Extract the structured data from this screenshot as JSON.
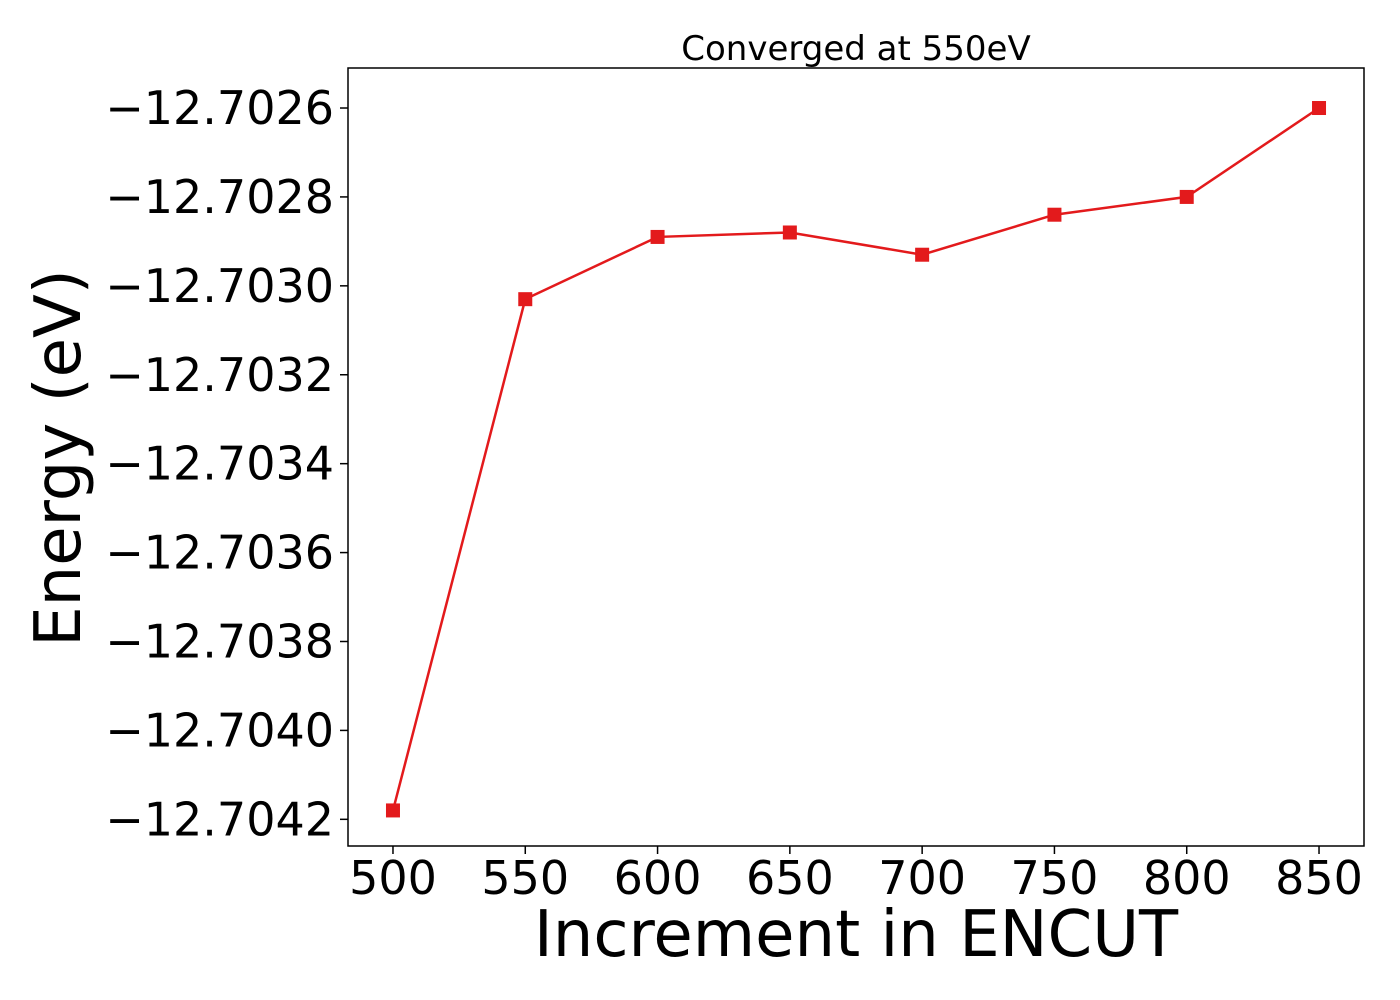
{
  "chart_data": {
    "type": "line",
    "title": "Converged at 550eV",
    "xlabel": "Increment in ENCUT",
    "ylabel": "Energy (eV)",
    "x": [
      500,
      550,
      600,
      650,
      700,
      750,
      800,
      850
    ],
    "series": [
      {
        "values": [
          -12.70418,
          -12.70303,
          -12.70289,
          -12.70288,
          -12.70293,
          -12.70284,
          -12.7028,
          -12.7026
        ],
        "color": "#e31a1c",
        "marker": "square"
      }
    ],
    "xticks": [
      500,
      550,
      600,
      650,
      700,
      750,
      800,
      850
    ],
    "xtick_labels": [
      "500",
      "550",
      "600",
      "650",
      "700",
      "750",
      "800",
      "850"
    ],
    "yticks": [
      -12.7042,
      -12.704,
      -12.7038,
      -12.7036,
      -12.7034,
      -12.7032,
      -12.703,
      -12.7028,
      -12.7026
    ],
    "ytick_labels": [
      "−12.7042",
      "−12.7040",
      "−12.7038",
      "−12.7036",
      "−12.7034",
      "−12.7032",
      "−12.7030",
      "−12.7028",
      "−12.7026"
    ],
    "xlim": [
      483,
      867
    ],
    "ylim": [
      -12.70426,
      -12.70251
    ],
    "grid": false,
    "legend": false
  }
}
